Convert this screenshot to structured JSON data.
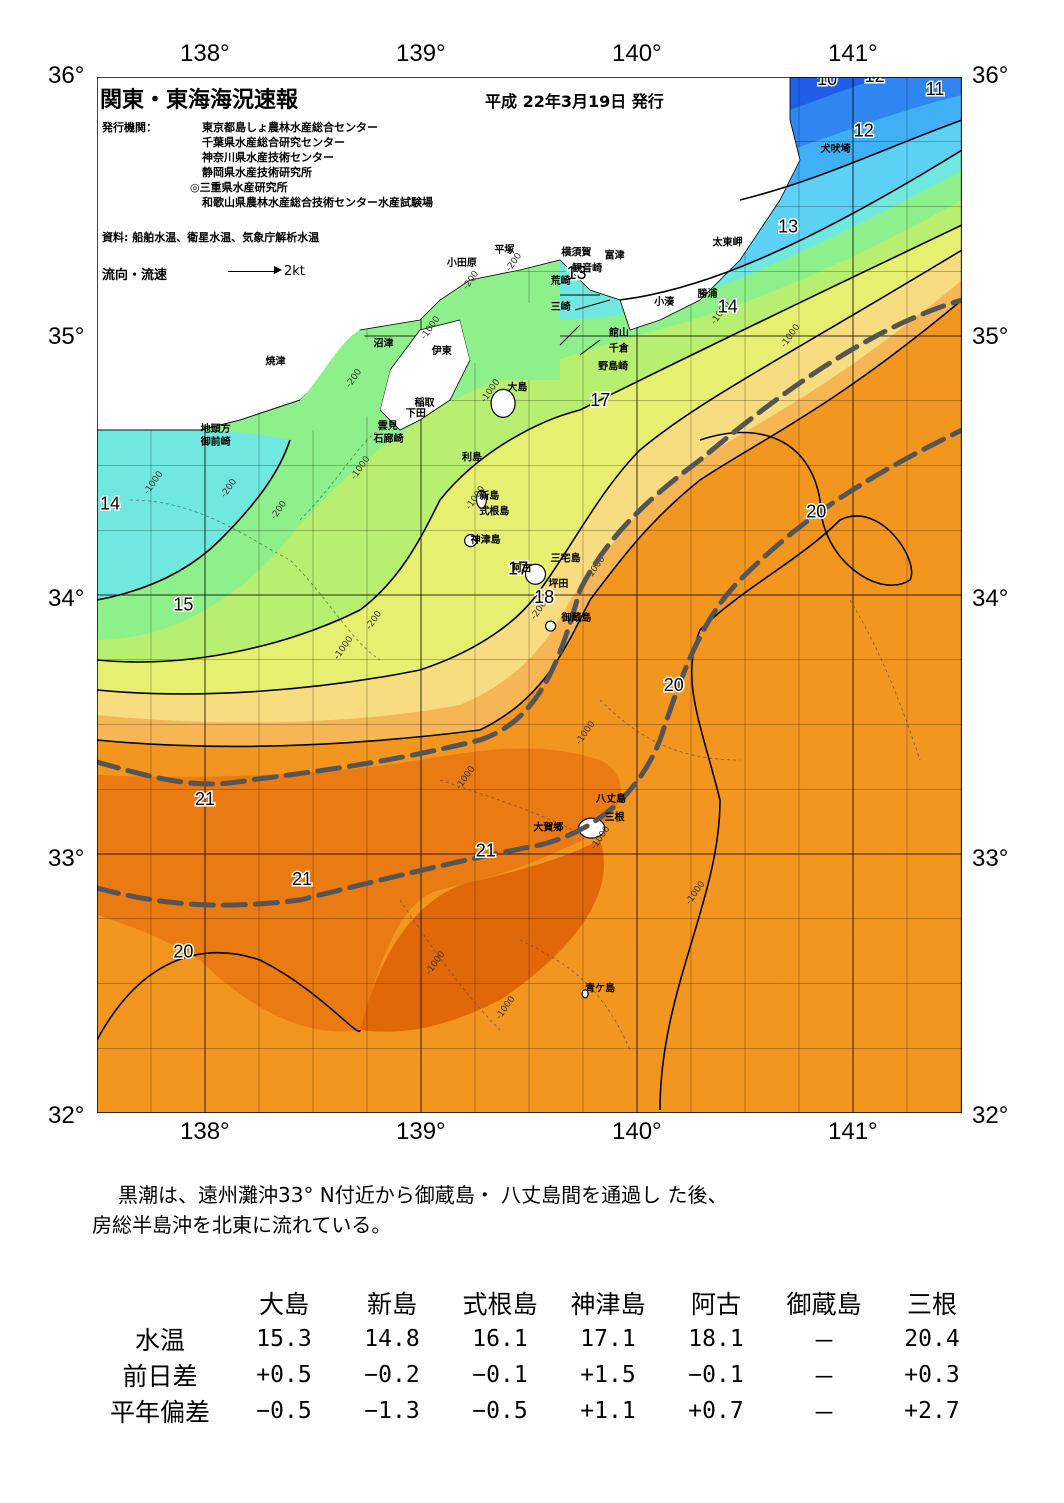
{
  "map": {
    "title": "関東・東海海況速報",
    "issue_date": "平成 22年3月19日 発行",
    "issuers_label": "発行機関：",
    "issuers": [
      "東京都島しょ農林水産総合センター",
      "千葉県水産総合研究センター",
      "神奈川県水産技術センター",
      "静岡県水産技術研究所",
      "◎三重県水産研究所",
      "和歌山県農林水産総合技術センター水産試験場"
    ],
    "sources": "資料: 船舶水温、衛星水温、気象庁解析水温",
    "flow_legend_label": "流向・流速",
    "flow_legend_unit": "2kt",
    "lon_labels": [
      "138°",
      "139°",
      "140°",
      "141°"
    ],
    "lat_labels": [
      "36°",
      "35°",
      "34°",
      "33°",
      "32°"
    ],
    "places": [
      {
        "name": "犬吠埼",
        "lon": 140.85,
        "lat": 35.71
      },
      {
        "name": "太東岬",
        "lon": 140.35,
        "lat": 35.35
      },
      {
        "name": "勝浦",
        "lon": 140.28,
        "lat": 35.15
      },
      {
        "name": "小湊",
        "lon": 140.08,
        "lat": 35.12
      },
      {
        "name": "富津",
        "lon": 139.85,
        "lat": 35.3
      },
      {
        "name": "横須賀",
        "lon": 139.65,
        "lat": 35.31
      },
      {
        "name": "観音崎",
        "lon": 139.7,
        "lat": 35.25
      },
      {
        "name": "荒崎",
        "lon": 139.6,
        "lat": 35.2
      },
      {
        "name": "三崎",
        "lon": 139.6,
        "lat": 35.1
      },
      {
        "name": "平塚",
        "lon": 139.34,
        "lat": 35.32
      },
      {
        "name": "小田原",
        "lon": 139.12,
        "lat": 35.27
      },
      {
        "name": "館山",
        "lon": 139.87,
        "lat": 35.0
      },
      {
        "name": "千倉",
        "lon": 139.87,
        "lat": 34.94
      },
      {
        "name": "野島崎",
        "lon": 139.82,
        "lat": 34.87
      },
      {
        "name": "沼津",
        "lon": 138.78,
        "lat": 34.96
      },
      {
        "name": "伊東",
        "lon": 139.05,
        "lat": 34.93
      },
      {
        "name": "焼津",
        "lon": 138.28,
        "lat": 34.89
      },
      {
        "name": "稲取",
        "lon": 138.97,
        "lat": 34.73
      },
      {
        "name": "下田",
        "lon": 138.93,
        "lat": 34.69
      },
      {
        "name": "雲見",
        "lon": 138.8,
        "lat": 34.64
      },
      {
        "name": "石廊崎",
        "lon": 138.78,
        "lat": 34.59
      },
      {
        "name": "地頭方",
        "lon": 137.98,
        "lat": 34.63
      },
      {
        "name": "御前崎",
        "lon": 137.98,
        "lat": 34.58
      },
      {
        "name": "大島",
        "lon": 139.4,
        "lat": 34.79
      },
      {
        "name": "利島",
        "lon": 139.19,
        "lat": 34.52
      },
      {
        "name": "新島",
        "lon": 139.27,
        "lat": 34.37
      },
      {
        "name": "式根島",
        "lon": 139.27,
        "lat": 34.31
      },
      {
        "name": "神津島",
        "lon": 139.23,
        "lat": 34.2
      },
      {
        "name": "三宅島",
        "lon": 139.6,
        "lat": 34.13
      },
      {
        "name": "阿古",
        "lon": 139.42,
        "lat": 34.09
      },
      {
        "name": "坪田",
        "lon": 139.59,
        "lat": 34.03
      },
      {
        "name": "御蔵島",
        "lon": 139.65,
        "lat": 33.9
      },
      {
        "name": "八丈島",
        "lon": 139.81,
        "lat": 33.2
      },
      {
        "name": "三根",
        "lon": 139.85,
        "lat": 33.13
      },
      {
        "name": "大賀郷",
        "lon": 139.52,
        "lat": 33.09
      },
      {
        "name": "青ケ島",
        "lon": 139.76,
        "lat": 32.47
      }
    ],
    "isotherm_labels": [
      {
        "text": "10",
        "lon": 140.88,
        "lat": 35.97
      },
      {
        "text": "12",
        "lon": 141.1,
        "lat": 35.98
      },
      {
        "text": "11",
        "lon": 141.38,
        "lat": 35.93
      },
      {
        "text": "12",
        "lon": 141.05,
        "lat": 35.77
      },
      {
        "text": "13",
        "lon": 140.7,
        "lat": 35.4
      },
      {
        "text": "14",
        "lon": 140.42,
        "lat": 35.09
      },
      {
        "text": "13",
        "lon": 139.72,
        "lat": 35.22
      },
      {
        "text": "17",
        "lon": 139.83,
        "lat": 34.73
      },
      {
        "text": "14",
        "lon": 137.56,
        "lat": 34.33
      },
      {
        "text": "15",
        "lon": 137.9,
        "lat": 33.94
      },
      {
        "text": "17",
        "lon": 139.45,
        "lat": 34.08
      },
      {
        "text": "18",
        "lon": 139.57,
        "lat": 33.97
      },
      {
        "text": "20",
        "lon": 140.83,
        "lat": 34.3
      },
      {
        "text": "20",
        "lon": 140.17,
        "lat": 33.63
      },
      {
        "text": "21",
        "lon": 138.0,
        "lat": 33.19
      },
      {
        "text": "21",
        "lon": 139.3,
        "lat": 32.99
      },
      {
        "text": "21",
        "lon": 138.45,
        "lat": 32.88
      },
      {
        "text": "20",
        "lon": 137.9,
        "lat": 32.6
      }
    ],
    "depth_labels": [
      "-200",
      "-200",
      "-1000",
      "-1000",
      "-1000",
      "-200",
      "-200",
      "-1000",
      "-1000",
      "-200",
      "-1000",
      "-1000",
      "-1000",
      "-1000",
      "-1000",
      "-200",
      "-1000",
      "-1000",
      "-200",
      "-1000",
      "-1000",
      "-1000"
    ],
    "temperature_colors": {
      "t10": "#1f5fe8",
      "t11": "#2f86f0",
      "t12": "#3fb0f5",
      "t13": "#5cd0f5",
      "t14": "#70e8e0",
      "t15": "#8ef08a",
      "t16": "#b8ef70",
      "t17": "#e6ef70",
      "t18": "#f7dd80",
      "t19": "#f6b656",
      "t20": "#f29620",
      "t21": "#ea7a12",
      "t22": "#e06808"
    },
    "kuroshio_color": "#555555"
  },
  "summary": [
    "黒潮は、遠州灘沖33° N付近から御蔵島・ 八丈島間を通過し た後、",
    "房総半島沖を北東に流れている。"
  ],
  "table": {
    "stations": [
      "大島",
      "新島",
      "式根島",
      "神津島",
      "阿古",
      "御蔵島",
      "三根"
    ],
    "rows": [
      {
        "label": "水温",
        "values": [
          "15.3",
          "14.8",
          "16.1",
          "17.1",
          "18.1",
          "－",
          "20.4"
        ]
      },
      {
        "label": "前日差",
        "values": [
          "+0.5",
          "−0.2",
          "−0.1",
          "+1.5",
          "−0.1",
          "－",
          "+0.3"
        ]
      },
      {
        "label": "平年偏差",
        "values": [
          "−0.5",
          "−1.3",
          "−0.5",
          "+1.1",
          "+0.7",
          "－",
          "+2.7"
        ]
      }
    ]
  }
}
